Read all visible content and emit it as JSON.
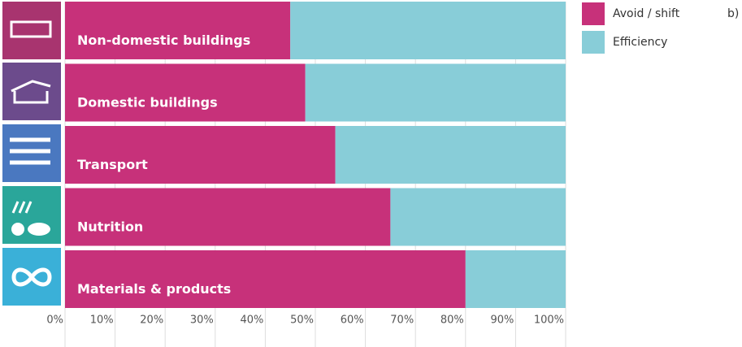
{
  "chart_data": {
    "type": "stacked-bar-horizontal",
    "categories": [
      "Non-domestic buildings",
      "Domestic buildings",
      "Transport",
      "Nutrition",
      "Materials & products"
    ],
    "series": [
      {
        "name": "Avoid / shift",
        "color": "#c7317a",
        "values": [
          45,
          48,
          54,
          65,
          80
        ]
      },
      {
        "name": "Efficiency",
        "color": "#88cdd8",
        "values": [
          55,
          52,
          46,
          35,
          20
        ]
      }
    ],
    "xlim": [
      0,
      100
    ],
    "xticks": [
      {
        "value": 0,
        "label": "0%"
      },
      {
        "value": 10,
        "label": "10%"
      },
      {
        "value": 20,
        "label": "20%"
      },
      {
        "value": 30,
        "label": "30%"
      },
      {
        "value": 40,
        "label": "40%"
      },
      {
        "value": 50,
        "label": "50%"
      },
      {
        "value": 60,
        "label": "60%"
      },
      {
        "value": 70,
        "label": "70%"
      },
      {
        "value": 80,
        "label": "80%"
      },
      {
        "value": 90,
        "label": "90%"
      },
      {
        "value": 100,
        "label": "100%"
      }
    ],
    "grid": true,
    "annotation": "b)"
  }
}
